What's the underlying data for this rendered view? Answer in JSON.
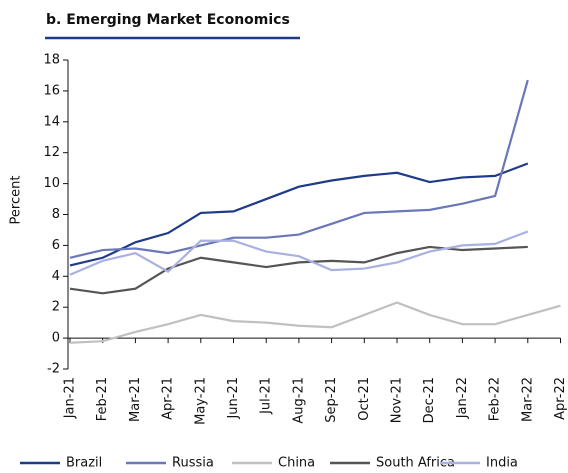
{
  "chart_data": {
    "type": "line",
    "title": "b. Emerging Market Economics",
    "y_label": "Percent",
    "categories": [
      "Jan-21",
      "Feb-21",
      "Mar-21",
      "Apr-21",
      "May-21",
      "Jun-21",
      "Jul-21",
      "Aug-21",
      "Sep-21",
      "Oct-21",
      "Nov-21",
      "Dec-21",
      "Jan-22",
      "Feb-22",
      "Mar-22",
      "Apr-22"
    ],
    "series": [
      {
        "name": "Brazil",
        "color": "#1f3a8a",
        "values": [
          4.7,
          5.2,
          6.2,
          6.8,
          8.1,
          8.2,
          9.0,
          9.8,
          10.2,
          10.5,
          10.7,
          10.1,
          10.4,
          10.5,
          11.3,
          null
        ]
      },
      {
        "name": "Russia",
        "color": "#6a77b8",
        "values": [
          5.2,
          5.7,
          5.8,
          5.5,
          6.0,
          6.5,
          6.5,
          6.7,
          7.4,
          8.1,
          8.2,
          8.3,
          8.7,
          9.2,
          16.7,
          null
        ]
      },
      {
        "name": "China",
        "color": "#c0c0c0",
        "values": [
          -0.3,
          -0.2,
          0.4,
          0.9,
          1.5,
          1.1,
          1.0,
          0.8,
          0.7,
          1.5,
          2.3,
          1.5,
          0.9,
          0.9,
          1.5,
          2.1
        ]
      },
      {
        "name": "South Africa",
        "color": "#555555",
        "values": [
          3.2,
          2.9,
          3.2,
          4.5,
          5.2,
          4.9,
          4.6,
          4.9,
          5.0,
          4.9,
          5.5,
          5.9,
          5.7,
          5.8,
          5.9,
          null
        ]
      },
      {
        "name": "India",
        "color": "#aab0e0",
        "values": [
          4.1,
          5.0,
          5.5,
          4.3,
          6.3,
          6.3,
          5.6,
          5.3,
          4.4,
          4.5,
          4.9,
          5.6,
          6.0,
          6.1,
          6.9,
          null
        ]
      }
    ],
    "ylim": [
      -2,
      18
    ],
    "yticks": [
      -2,
      0,
      2,
      4,
      6,
      8,
      10,
      12,
      14,
      16,
      18
    ],
    "legend": "bottom"
  }
}
